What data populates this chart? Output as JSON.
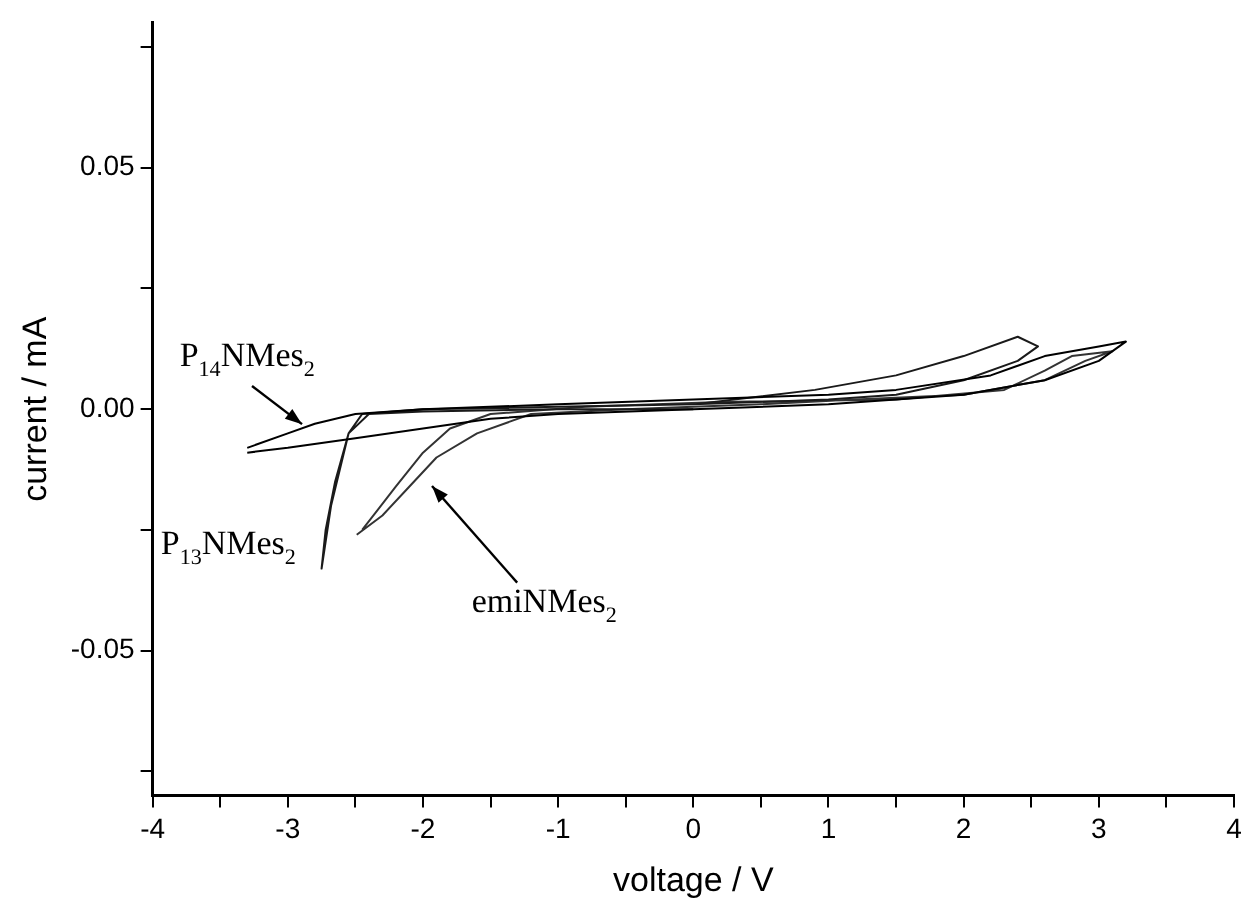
{
  "chart_data": {
    "type": "line",
    "xlabel": "voltage / V",
    "ylabel": "current / mA",
    "xlim": [
      -4,
      4
    ],
    "ylim": [
      -0.08,
      0.08
    ],
    "xticks": [
      -4,
      {
        "value": -3.5,
        "label": null
      },
      -3,
      {
        "value": -2.5,
        "label": null
      },
      -2,
      {
        "value": -1.5,
        "label": null
      },
      -1,
      {
        "value": -0.5,
        "label": null
      },
      0,
      {
        "value": 0.5,
        "label": null
      },
      1,
      {
        "value": 1.5,
        "label": null
      },
      2,
      {
        "value": 2.5,
        "label": null
      },
      3,
      {
        "value": 3.5,
        "label": null
      },
      4
    ],
    "yticks": [
      {
        "value": -0.075,
        "label": null
      },
      -0.05,
      {
        "value": -0.025,
        "label": null
      },
      {
        "value": 0,
        "label": "0.00"
      },
      {
        "value": 0.025,
        "label": null
      },
      0.05,
      {
        "value": 0.075,
        "label": null
      }
    ],
    "grid": false,
    "legend": false,
    "series": [
      {
        "name": "P$_{14}$NMes$_{2}$",
        "color": "#000000",
        "x": [
          -3.3,
          -3.0,
          -2.5,
          -2.0,
          -1.5,
          -1.0,
          0,
          1,
          2,
          2.6,
          3.0,
          3.2,
          3.0,
          2.6,
          2.2,
          1.5,
          1,
          0,
          -1,
          -2,
          -2.5,
          -2.8,
          -3.0,
          -3.3
        ],
        "values": [
          -0.009,
          -0.008,
          -0.006,
          -0.004,
          -0.002,
          -0.001,
          0.0,
          0.001,
          0.003,
          0.006,
          0.01,
          0.014,
          0.013,
          0.011,
          0.007,
          0.004,
          0.003,
          0.002,
          0.001,
          0.0,
          -0.001,
          -0.003,
          -0.005,
          -0.008
        ]
      },
      {
        "name": "P$_{13}$NMes$_{2}$",
        "color": "#1a1a1a",
        "x": [
          0,
          -1,
          -2,
          -2.4,
          -2.55,
          -2.65,
          -2.72,
          -2.75,
          -2.68,
          -2.55,
          -2.45,
          -2,
          -1,
          0,
          0.9,
          1.5,
          2.0,
          2.4,
          2.55,
          2.4,
          2.0,
          1.5,
          1,
          0
        ],
        "values": [
          0.0,
          0.0,
          -0.0005,
          -0.001,
          -0.005,
          -0.015,
          -0.025,
          -0.033,
          -0.02,
          -0.005,
          -0.001,
          0.0,
          0.0005,
          0.001,
          0.004,
          0.007,
          0.011,
          0.015,
          0.013,
          0.01,
          0.006,
          0.003,
          0.002,
          0.001
        ]
      },
      {
        "name": "emiNMes$_{2}$",
        "color": "#333333",
        "x": [
          -2.49,
          -2.3,
          -2.1,
          -1.9,
          -1.6,
          -1.2,
          -0.5,
          0.5,
          1.2,
          2,
          2.6,
          2.9,
          3.1,
          2.8,
          2.6,
          2.3,
          1.5,
          0.2,
          -0.8,
          -1.5,
          -1.8,
          -2.0,
          -2.2,
          -2.45
        ],
        "values": [
          -0.026,
          -0.022,
          -0.016,
          -0.01,
          -0.005,
          -0.001,
          0.0,
          0.001,
          0.002,
          0.003,
          0.006,
          0.01,
          0.012,
          0.011,
          0.008,
          0.004,
          0.002,
          0.0015,
          0.0005,
          -0.001,
          -0.004,
          -0.009,
          -0.016,
          -0.025
        ]
      }
    ]
  }
}
